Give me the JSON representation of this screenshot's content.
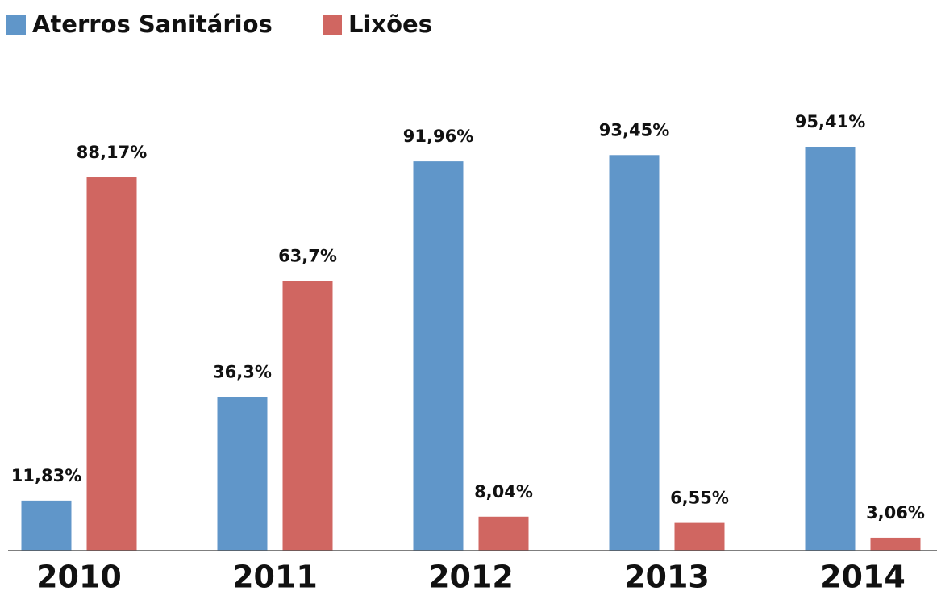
{
  "chart_data": {
    "type": "bar",
    "categories": [
      "2010",
      "2011",
      "2012",
      "2013",
      "2014"
    ],
    "series": [
      {
        "name": "Aterros Sanitários",
        "color": "#6096c9",
        "values": [
          11.83,
          36.3,
          91.96,
          93.45,
          95.41
        ],
        "value_labels": [
          "11,83%",
          "36,3%",
          "91,96%",
          "93,45%",
          "95,41%"
        ]
      },
      {
        "name": "Lixões",
        "color": "#d06661",
        "values": [
          88.17,
          63.7,
          8.04,
          6.55,
          3.06
        ],
        "value_labels": [
          "88,17%",
          "63,7%",
          "8,04%",
          "6,55%",
          "3,06%"
        ]
      }
    ]
  }
}
